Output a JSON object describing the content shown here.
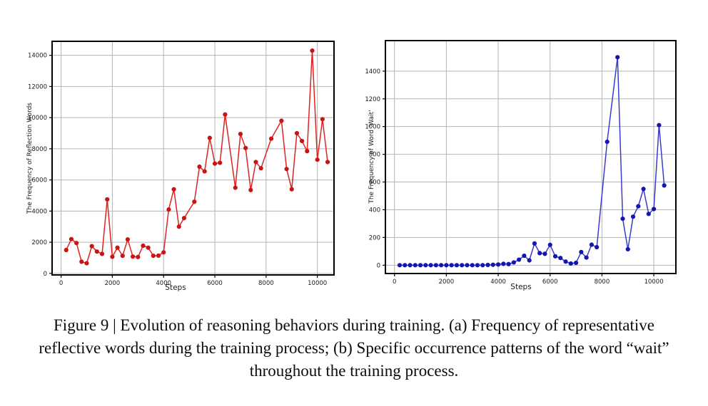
{
  "caption": {
    "line1": "Figure 9 | Evolution of reasoning behaviors during training. (a) Frequency of representative",
    "line2": "reflective words during the training process; (b) Specific occurrence patterns of the word “wait”",
    "line3": "throughout the training process."
  },
  "chart_data": [
    {
      "id": "reflection-words",
      "type": "line",
      "title": "",
      "xlabel": "Steps",
      "ylabel": "The Frequency of Reflection Words",
      "legend": null,
      "grid": true,
      "line_color": "#e02222",
      "marker_color": "#c81414",
      "grid_color": "#b4b4b4",
      "xlim": [
        -350,
        10650
      ],
      "ylim": [
        -100,
        14900
      ],
      "x_ticks": [
        0,
        2000,
        4000,
        6000,
        8000,
        10000
      ],
      "y_ticks": [
        0,
        2000,
        4000,
        6000,
        8000,
        10000,
        12000,
        14000
      ],
      "x": [
        200,
        400,
        600,
        800,
        1000,
        1200,
        1400,
        1600,
        1800,
        2000,
        2200,
        2400,
        2600,
        2800,
        3000,
        3200,
        3400,
        3600,
        3800,
        4000,
        4200,
        4400,
        4600,
        4800,
        5200,
        5400,
        5600,
        5800,
        6000,
        6200,
        6400,
        6800,
        7000,
        7200,
        7400,
        7600,
        7800,
        8200,
        8600,
        8800,
        9000,
        9200,
        9400,
        9600,
        9800,
        10000,
        10200,
        10400
      ],
      "y": [
        1500,
        2200,
        1950,
        750,
        650,
        1750,
        1400,
        1250,
        4750,
        1070,
        1650,
        1130,
        2180,
        1080,
        1050,
        1780,
        1650,
        1130,
        1140,
        1350,
        4100,
        5400,
        3000,
        3550,
        4600,
        6850,
        6550,
        8700,
        7050,
        7100,
        10200,
        5500,
        8950,
        8050,
        5350,
        7150,
        6750,
        8650,
        9800,
        6700,
        5400,
        9000,
        8500,
        7850,
        14300,
        7300,
        9900,
        7150
      ]
    },
    {
      "id": "word-wait",
      "type": "line",
      "title": "",
      "xlabel": "Steps",
      "ylabel": "The Frequency of Word 'Wait'",
      "legend": null,
      "grid": true,
      "line_color": "#3a3ad0",
      "marker_color": "#1515b0",
      "grid_color": "#b4b4b4",
      "xlim": [
        -350,
        10850
      ],
      "ylim": [
        -60,
        1620
      ],
      "x_ticks": [
        0,
        2000,
        4000,
        6000,
        8000,
        10000
      ],
      "y_ticks": [
        0,
        200,
        400,
        600,
        800,
        1000,
        1200,
        1400
      ],
      "x": [
        200,
        400,
        600,
        800,
        1000,
        1200,
        1400,
        1600,
        1800,
        2000,
        2200,
        2400,
        2600,
        2800,
        3000,
        3200,
        3400,
        3600,
        3800,
        4000,
        4200,
        4400,
        4600,
        4800,
        5000,
        5200,
        5400,
        5600,
        5800,
        6000,
        6200,
        6400,
        6600,
        6800,
        7000,
        7200,
        7400,
        7600,
        7800,
        8200,
        8600,
        8800,
        9000,
        9200,
        9400,
        9600,
        9800,
        10000,
        10200,
        10400
      ],
      "y": [
        0,
        0,
        0,
        0,
        0,
        0,
        0,
        0,
        0,
        0,
        0,
        0,
        0,
        0,
        0,
        0,
        0,
        2,
        3,
        5,
        10,
        8,
        20,
        40,
        68,
        35,
        157,
        87,
        82,
        147,
        64,
        52,
        26,
        12,
        17,
        95,
        55,
        148,
        130,
        890,
        1500,
        335,
        115,
        350,
        425,
        550,
        370,
        405,
        1010,
        575
      ]
    }
  ]
}
